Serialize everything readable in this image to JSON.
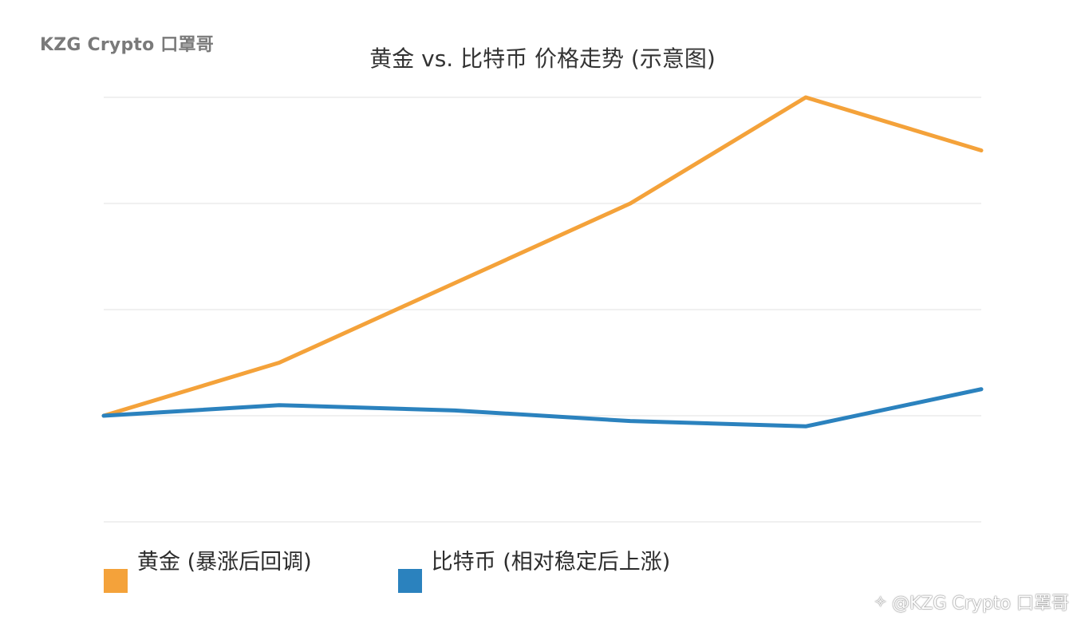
{
  "brand": "KZG Crypto 口罩哥",
  "watermark": {
    "icon": "diamond-logo-icon",
    "text": "@KZG Crypto 口罩哥"
  },
  "chart_data": {
    "type": "line",
    "title": "黄金 vs. 比特币 价格走势 (示意图)",
    "xlabel": "",
    "ylabel": "",
    "x": [
      0,
      1,
      2,
      3,
      4,
      5
    ],
    "ylim": [
      -2,
      6
    ],
    "grid": true,
    "legend_position": "bottom-left",
    "series": [
      {
        "name": "黄金 (暴涨后回调)",
        "color": "#F4A23A",
        "values": [
          0,
          1,
          2.5,
          4,
          6,
          5
        ]
      },
      {
        "name": "比特币 (相对稳定后上涨)",
        "color": "#2B82BE",
        "values": [
          0,
          0.2,
          0.1,
          -0.1,
          -0.2,
          0.5
        ]
      }
    ]
  }
}
